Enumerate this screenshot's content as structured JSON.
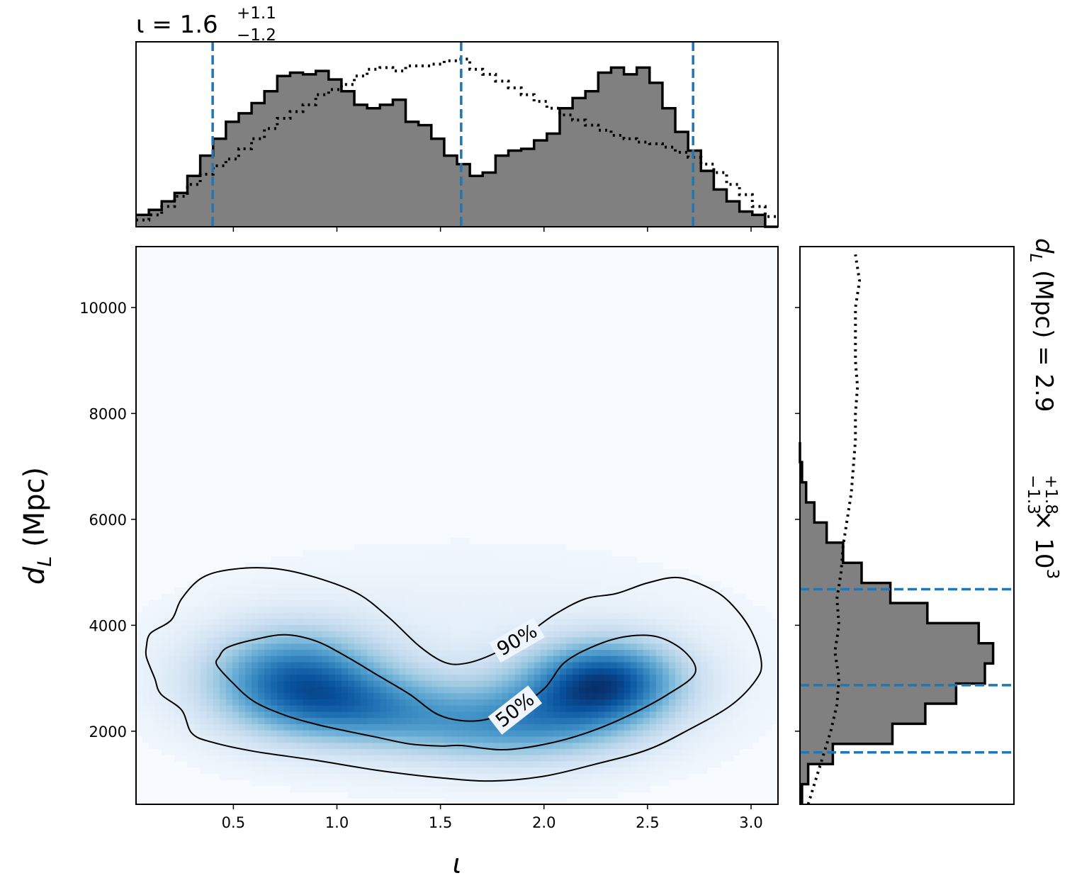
{
  "chart_data": [
    {
      "panel": "top-marginal",
      "type": "histogram",
      "title": {
        "base": "ι = 1.6",
        "sup": "+1.1",
        "sub": "−1.2"
      },
      "xlim": [
        0.03,
        3.13
      ],
      "x_ticks": [
        0.5,
        1.0,
        1.5,
        2.0,
        2.5,
        3.0
      ],
      "bins_x": [
        0.03,
        0.092,
        0.154,
        0.216,
        0.278,
        0.34,
        0.402,
        0.464,
        0.526,
        0.588,
        0.65,
        0.712,
        0.774,
        0.836,
        0.898,
        0.96,
        1.022,
        1.084,
        1.146,
        1.208,
        1.27,
        1.332,
        1.394,
        1.456,
        1.518,
        1.58,
        1.642,
        1.704,
        1.766,
        1.828,
        1.89,
        1.952,
        2.014,
        2.076,
        2.138,
        2.2,
        2.262,
        2.324,
        2.386,
        2.448,
        2.51,
        2.572,
        2.634,
        2.696,
        2.758,
        2.82,
        2.882,
        2.944,
        3.006,
        3.068,
        3.13
      ],
      "series": [
        {
          "style": "filled-step",
          "values": [
            7,
            10,
            15,
            20,
            30,
            42,
            52,
            62,
            67,
            73,
            80,
            89,
            91,
            90,
            92,
            87,
            80,
            72,
            70,
            72,
            75,
            62,
            60,
            52,
            42,
            37,
            30,
            32,
            42,
            45,
            46,
            51,
            55,
            70,
            76,
            80,
            91,
            94,
            90,
            94,
            85,
            70,
            56,
            45,
            33,
            22,
            15,
            9,
            7,
            0
          ]
        },
        {
          "style": "dotted-step",
          "values": [
            4,
            7,
            12,
            18,
            25,
            31,
            36,
            40,
            46,
            52,
            58,
            64,
            68,
            72,
            78,
            81,
            84,
            89,
            93,
            94,
            92,
            95,
            95,
            96,
            98,
            99,
            93,
            90,
            86,
            82,
            78,
            74,
            70,
            66,
            63,
            60,
            57,
            54,
            52,
            50,
            49,
            47,
            44,
            41,
            37,
            32,
            25,
            19,
            12,
            6
          ]
        }
      ],
      "vlines": [
        0.4,
        1.6,
        2.72
      ],
      "colors": {
        "fill": "#808080",
        "edge": "#000000",
        "quantile": "#1f77b4"
      }
    },
    {
      "panel": "joint",
      "type": "heatmap",
      "xlabel": "ι",
      "ylabel": {
        "base": "d",
        "sub": "L",
        "rest": " (Mpc)"
      },
      "xlim": [
        0.03,
        3.13
      ],
      "ylim": [
        620,
        11150
      ],
      "x_ticks": [
        0.5,
        1.0,
        1.5,
        2.0,
        2.5,
        3.0
      ],
      "y_ticks": [
        2000,
        4000,
        6000,
        8000,
        10000
      ],
      "colormap": "Blues",
      "contours": [
        {
          "label": "50%",
          "path": [
            [
              0.43,
              3400
            ],
            [
              0.47,
              3580
            ],
            [
              0.6,
              3730
            ],
            [
              0.75,
              3820
            ],
            [
              0.9,
              3700
            ],
            [
              1.05,
              3400
            ],
            [
              1.2,
              3050
            ],
            [
              1.35,
              2700
            ],
            [
              1.48,
              2330
            ],
            [
              1.6,
              2200
            ],
            [
              1.72,
              2220
            ],
            [
              1.85,
              2400
            ],
            [
              2.0,
              2800
            ],
            [
              2.1,
              3300
            ],
            [
              2.25,
              3620
            ],
            [
              2.4,
              3790
            ],
            [
              2.55,
              3780
            ],
            [
              2.68,
              3500
            ],
            [
              2.73,
              3100
            ],
            [
              2.6,
              2700
            ],
            [
              2.4,
              2280
            ],
            [
              2.2,
              1960
            ],
            [
              2.0,
              1750
            ],
            [
              1.8,
              1650
            ],
            [
              1.6,
              1730
            ],
            [
              1.5,
              1720
            ],
            [
              1.35,
              1760
            ],
            [
              1.2,
              1880
            ],
            [
              1.05,
              2000
            ],
            [
              0.9,
              2130
            ],
            [
              0.75,
              2300
            ],
            [
              0.6,
              2560
            ],
            [
              0.5,
              2900
            ],
            [
              0.42,
              3250
            ],
            [
              0.43,
              3400
            ]
          ]
        },
        {
          "label": "90%",
          "path": [
            [
              0.08,
              3600
            ],
            [
              0.1,
              3850
            ],
            [
              0.2,
              4100
            ],
            [
              0.25,
              4500
            ],
            [
              0.35,
              4900
            ],
            [
              0.5,
              5060
            ],
            [
              0.7,
              5070
            ],
            [
              0.9,
              4900
            ],
            [
              1.1,
              4600
            ],
            [
              1.25,
              4150
            ],
            [
              1.4,
              3600
            ],
            [
              1.52,
              3300
            ],
            [
              1.62,
              3280
            ],
            [
              1.75,
              3450
            ],
            [
              1.9,
              3780
            ],
            [
              2.05,
              4200
            ],
            [
              2.2,
              4500
            ],
            [
              2.35,
              4600
            ],
            [
              2.5,
              4800
            ],
            [
              2.65,
              4900
            ],
            [
              2.8,
              4700
            ],
            [
              2.9,
              4420
            ],
            [
              3.0,
              3900
            ],
            [
              3.05,
              3300
            ],
            [
              3.02,
              2950
            ],
            [
              2.9,
              2480
            ],
            [
              2.7,
              2030
            ],
            [
              2.5,
              1650
            ],
            [
              2.25,
              1380
            ],
            [
              2.0,
              1150
            ],
            [
              1.75,
              1060
            ],
            [
              1.5,
              1120
            ],
            [
              1.2,
              1260
            ],
            [
              0.9,
              1450
            ],
            [
              0.6,
              1620
            ],
            [
              0.4,
              1790
            ],
            [
              0.3,
              1960
            ],
            [
              0.25,
              2400
            ],
            [
              0.15,
              2700
            ],
            [
              0.12,
              3000
            ],
            [
              0.08,
              3400
            ],
            [
              0.08,
              3600
            ]
          ]
        }
      ],
      "density_components": [
        {
          "x": 0.8,
          "y": 3000,
          "sx": 0.28,
          "sy": 620,
          "w": 0.88
        },
        {
          "x": 1.15,
          "y": 2450,
          "sx": 0.33,
          "sy": 470,
          "w": 0.55
        },
        {
          "x": 1.7,
          "y": 2050,
          "sx": 0.35,
          "sy": 430,
          "w": 0.38
        },
        {
          "x": 2.3,
          "y": 2950,
          "sx": 0.24,
          "sy": 520,
          "w": 1.0
        },
        {
          "x": 2.05,
          "y": 2400,
          "sx": 0.3,
          "sy": 560,
          "w": 0.45
        },
        {
          "x": 1.6,
          "y": 3200,
          "sx": 1.1,
          "sy": 1600,
          "w": 0.08
        }
      ]
    },
    {
      "panel": "right-marginal",
      "type": "histogram",
      "title": {
        "base": "d",
        "sub_L": "L",
        "mid": " (Mpc) = 2.9",
        "sup": "+1.8",
        "sub": "−1.3",
        "tail": " × 10",
        "exp": "3"
      },
      "ylim": [
        620,
        11150
      ],
      "bins_y": [
        620,
        1000,
        1380,
        1760,
        2140,
        2520,
        2900,
        3280,
        3660,
        4040,
        4420,
        4800,
        5180,
        5560,
        5940,
        6320,
        6700,
        7080,
        7460
      ],
      "series": [
        {
          "style": "filled-step",
          "values": [
            1,
            4,
            16,
            45,
            61,
            76,
            90,
            94,
            87,
            62,
            44,
            30,
            21,
            13,
            7,
            3,
            1,
            0
          ]
        }
      ],
      "dotted_curve": [
        [
          620,
          4
        ],
        [
          1000,
          7
        ],
        [
          1500,
          11
        ],
        [
          2000,
          15
        ],
        [
          2500,
          18
        ],
        [
          3000,
          19
        ],
        [
          3500,
          17
        ],
        [
          4000,
          19
        ],
        [
          4500,
          18
        ],
        [
          5000,
          20
        ],
        [
          5500,
          21
        ],
        [
          6000,
          23
        ],
        [
          6500,
          25
        ],
        [
          7000,
          26
        ],
        [
          7500,
          27
        ],
        [
          8000,
          27
        ],
        [
          8500,
          28
        ],
        [
          9000,
          27
        ],
        [
          9500,
          27
        ],
        [
          10000,
          27
        ],
        [
          10500,
          29
        ],
        [
          11000,
          27
        ]
      ],
      "hlines": [
        1600,
        2870,
        4680
      ],
      "colors": {
        "fill": "#808080",
        "edge": "#000000",
        "quantile": "#1f77b4"
      }
    }
  ]
}
